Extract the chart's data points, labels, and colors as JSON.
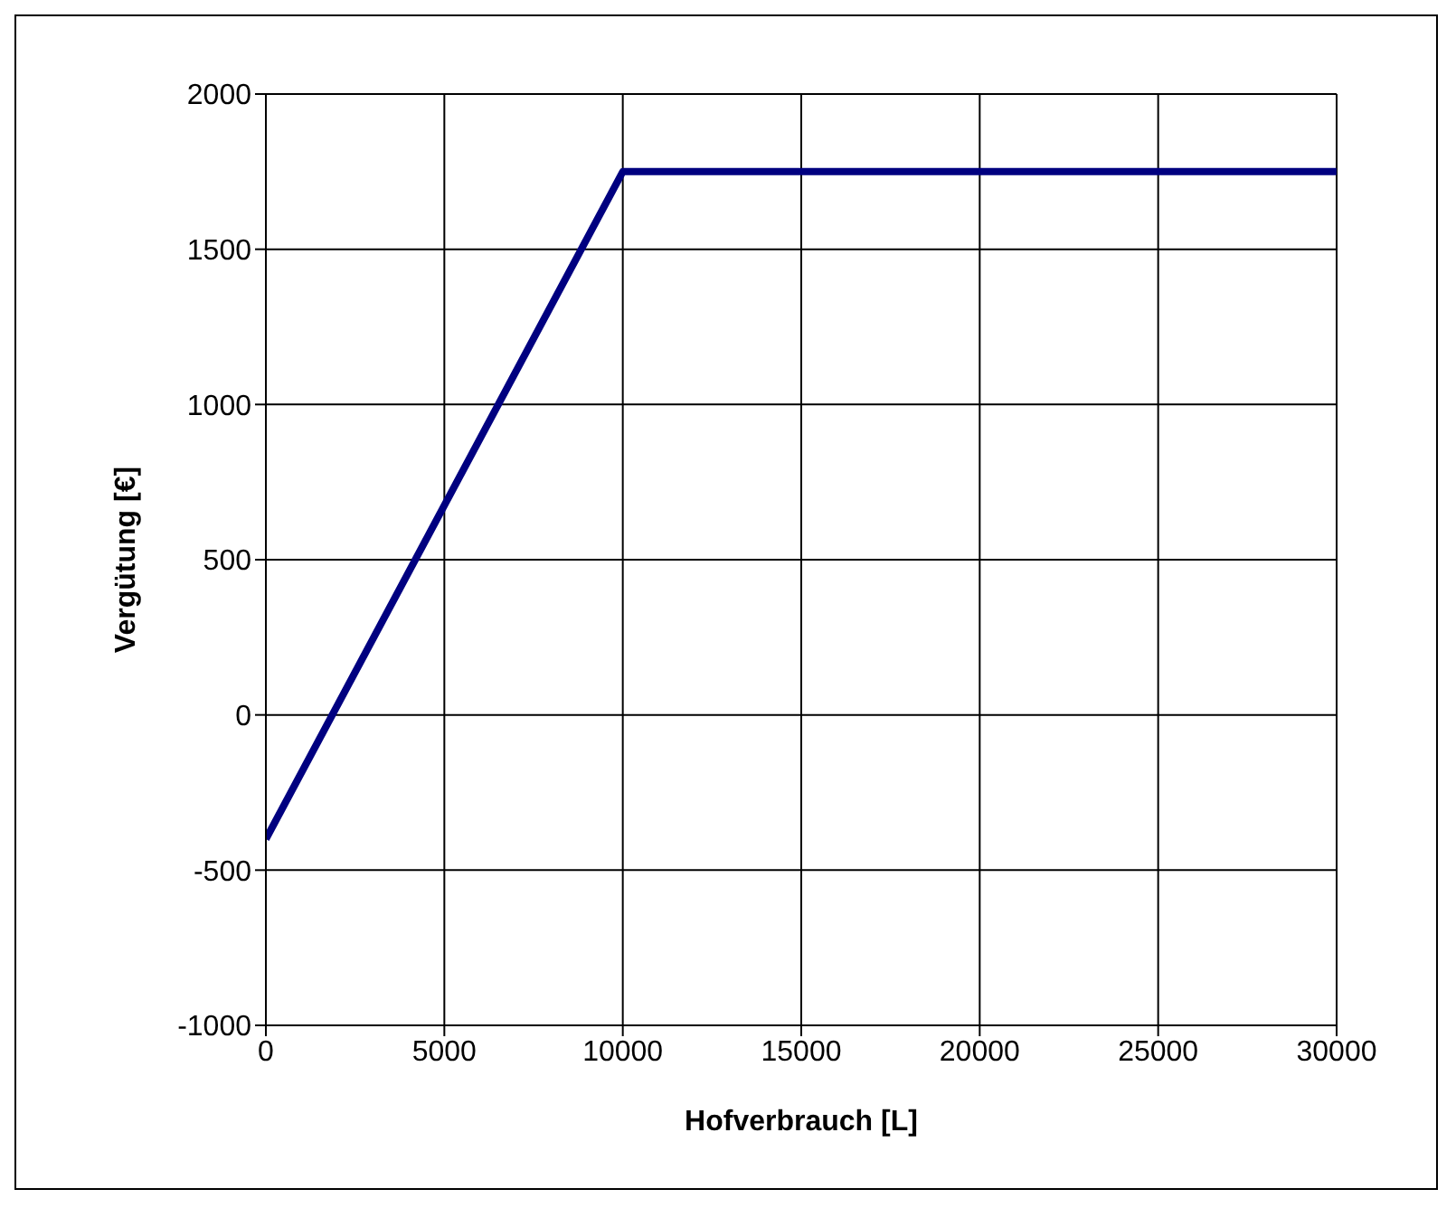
{
  "chart_data": {
    "type": "line",
    "xlabel": "Hofverbrauch [L]",
    "ylabel": "Vergütung [€]",
    "x": [
      0,
      10000,
      30000
    ],
    "series": [
      {
        "color": "#000080",
        "values": [
          -400,
          1750,
          1750
        ]
      }
    ],
    "xlim": [
      0,
      30000
    ],
    "xticks": [
      0,
      5000,
      10000,
      15000,
      20000,
      25000,
      30000
    ],
    "ylim": [
      -1000,
      2000
    ],
    "yticks": [
      -1000,
      -500,
      0,
      500,
      1000,
      1500,
      2000
    ],
    "grid": true,
    "legend": false,
    "marker": "none",
    "line_style": "solid"
  }
}
